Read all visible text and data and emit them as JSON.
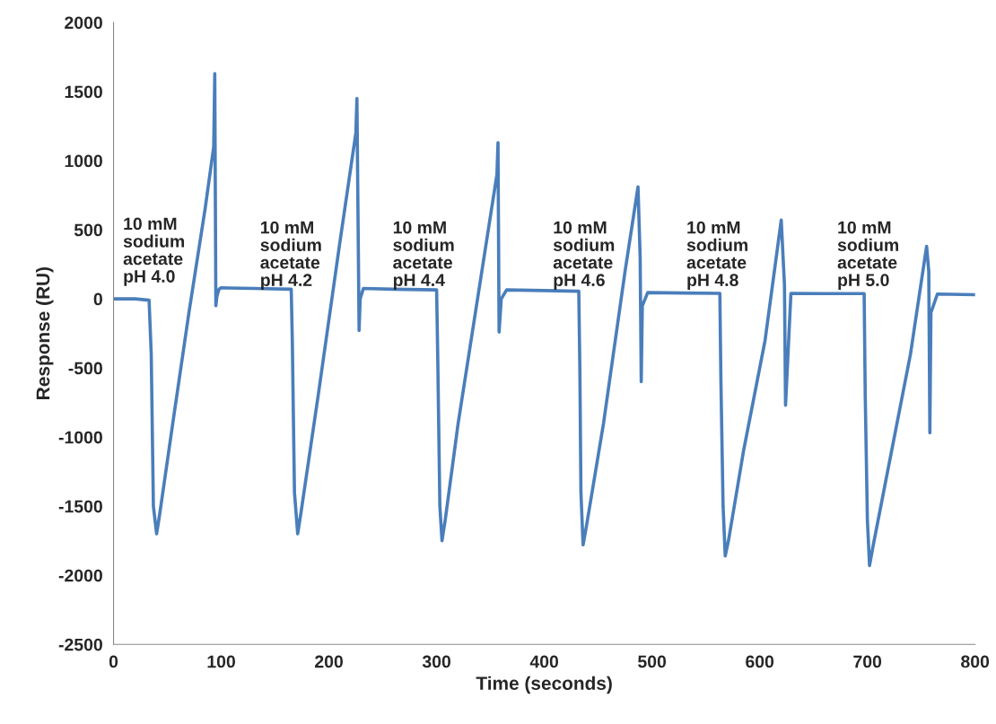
{
  "chart_data": {
    "type": "line",
    "xlabel": "Time (seconds)",
    "ylabel": "Response (RU)",
    "xlim": [
      0,
      800
    ],
    "ylim": [
      -2500,
      2000
    ],
    "xticks": [
      0,
      100,
      200,
      300,
      400,
      500,
      600,
      700,
      800
    ],
    "yticks": [
      -2500,
      -2000,
      -1500,
      -1000,
      -500,
      0,
      500,
      1000,
      1500,
      2000
    ],
    "grid": false,
    "legend": false,
    "marker": "none",
    "line_style": "solid",
    "series": [
      {
        "color": "#4a7ebb",
        "x": [
          0,
          20,
          33,
          35,
          37,
          40,
          43,
          55,
          70,
          85,
          93,
          94,
          95,
          96,
          98,
          100,
          130,
          165,
          166,
          168,
          171,
          174,
          190,
          210,
          225,
          226,
          228,
          229,
          232,
          260,
          300,
          301,
          303,
          305,
          308,
          320,
          340,
          356,
          357,
          358,
          360,
          365,
          400,
          432,
          433,
          434,
          436,
          439,
          455,
          475,
          487,
          489,
          490,
          491,
          496,
          530,
          563,
          564,
          566,
          568,
          571,
          585,
          605,
          620,
          623,
          624,
          629,
          660,
          697,
          698,
          700,
          702,
          705,
          720,
          740,
          755,
          757,
          758,
          759,
          765,
          800
        ],
        "values": [
          0,
          0,
          -10,
          -400,
          -1500,
          -1700,
          -1550,
          -900,
          -100,
          650,
          1100,
          1630,
          -50,
          20,
          70,
          80,
          75,
          70,
          -300,
          -1400,
          -1700,
          -1550,
          -700,
          400,
          1200,
          1450,
          -230,
          0,
          75,
          70,
          65,
          -400,
          -1500,
          -1750,
          -1600,
          -900,
          100,
          900,
          1130,
          -240,
          0,
          65,
          60,
          55,
          -500,
          -1400,
          -1780,
          -1650,
          -900,
          200,
          810,
          300,
          -600,
          -50,
          45,
          42,
          40,
          -600,
          -1500,
          -1860,
          -1750,
          -1100,
          -300,
          570,
          100,
          -770,
          40,
          38,
          38,
          -700,
          -1600,
          -1930,
          -1800,
          -1200,
          -400,
          380,
          200,
          -970,
          -100,
          35,
          30
        ]
      }
    ],
    "annotations": [
      "10 mM\nsodium\nacetate\npH 4.0",
      "10 mM\nsodium\nacetate\npH 4.2",
      "10 mM\nsodium\nacetate\npH 4.4",
      "10 mM\nsodium\nacetate\npH 4.6",
      "10 mM\nsodium\nacetate\npH 4.8",
      "10 mM\nsodium\nacetate\npH 5.0"
    ]
  }
}
